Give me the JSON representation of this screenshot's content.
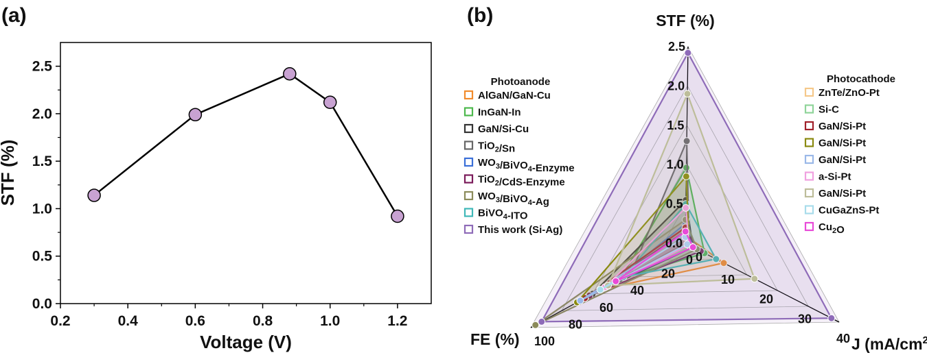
{
  "chart_data": [
    {
      "type": "line",
      "panel_label": "(a)",
      "xlabel": "Voltage (V)",
      "ylabel": "STF (%)",
      "xlim": [
        0.2,
        1.3
      ],
      "ylim": [
        0.0,
        2.75
      ],
      "x_ticks": [
        "0.2",
        "0.4",
        "0.6",
        "0.8",
        "1.0",
        "1.2"
      ],
      "y_ticks": [
        "0.0",
        "0.5",
        "1.0",
        "1.5",
        "2.0",
        "2.5"
      ],
      "x": [
        0.3,
        0.6,
        0.88,
        1.0,
        1.2
      ],
      "y": [
        1.14,
        1.99,
        2.42,
        2.12,
        0.92
      ],
      "marker_color": "#c8a2d2",
      "line_color": "#000000",
      "grid": false
    },
    {
      "type": "radar",
      "panel_label": "(b)",
      "axes": [
        {
          "key": "stf",
          "label": "STF (%)",
          "range": [
            0,
            2.5
          ],
          "ticks": [
            "0.0",
            "0.5",
            "1.0",
            "1.5",
            "2.0",
            "2.5"
          ],
          "tick_values": [
            0,
            0.5,
            1.0,
            1.5,
            2.0,
            2.5
          ]
        },
        {
          "key": "j",
          "label": "J (mA/cm",
          "label_sup": "2",
          "label_end": ")",
          "range": [
            0,
            40
          ],
          "ticks": [
            "0",
            "10",
            "20",
            "30",
            "40"
          ],
          "tick_values": [
            0,
            10,
            20,
            30,
            40
          ]
        },
        {
          "key": "fe",
          "label": "FE (%)",
          "range": [
            0,
            100
          ],
          "ticks": [
            "0",
            "20",
            "40",
            "60",
            "80",
            "100"
          ],
          "tick_values": [
            0,
            20,
            40,
            60,
            80,
            100
          ]
        }
      ],
      "legend_groups": [
        {
          "title": "Photoanode",
          "entries": [
            {
              "name": "AlGaN/GaN-Cu",
              "color": "#f28b2b"
            },
            {
              "name": "InGaN-In",
              "color": "#4cb84c"
            },
            {
              "name": "GaN/Si-Cu",
              "color": "#333333"
            },
            {
              "name": "TiO2/Sn",
              "color": "#666666"
            },
            {
              "name": "WO3/BiVO4-Enzyme",
              "color": "#3a6fd8"
            },
            {
              "name": "TiO2/CdS-Enzyme",
              "color": "#7a1a5a"
            },
            {
              "name": "WO3/BiVO4-Ag",
              "color": "#8b8b5a"
            },
            {
              "name": "BiVO4-ITO",
              "color": "#3fb8b8"
            },
            {
              "name": "This work (Si-Ag)",
              "color": "#8e6bb8"
            }
          ]
        },
        {
          "title": "Photocathode",
          "entries": [
            {
              "name": "ZnTe/ZnO-Pt",
              "color": "#f5c88a"
            },
            {
              "name": "Si-C",
              "color": "#8fd49a"
            },
            {
              "name": "GaN/Si-Pt",
              "color": "#a0202a"
            },
            {
              "name": "GaN/Si-Pt",
              "color": "#8a8a10"
            },
            {
              "name": "GaN/Si-Pt",
              "color": "#9ab8e8"
            },
            {
              "name": "a-Si-Pt",
              "color": "#f0a0e0"
            },
            {
              "name": "GaN/Si-Pt",
              "color": "#bdbd9a"
            },
            {
              "name": "CuGaZnS-Pt",
              "color": "#a8dceb"
            },
            {
              "name": "Cu2O",
              "color": "#e84ad8"
            }
          ]
        }
      ],
      "series": [
        {
          "name": "AlGaN/GaN-Cu",
          "color": "#f28b2b",
          "stf": 0.1,
          "j": 10,
          "fe": 55
        },
        {
          "name": "InGaN-In",
          "color": "#4cb84c",
          "stf": 0.96,
          "j": 5,
          "fe": 42
        },
        {
          "name": "GaN/Si-Cu",
          "color": "#333333",
          "stf": 0.55,
          "j": 2,
          "fe": 60
        },
        {
          "name": "TiO2/Sn",
          "color": "#666666",
          "stf": 1.3,
          "j": 1,
          "fe": 35
        },
        {
          "name": "WO3/BiVO4-Enzyme",
          "color": "#3a6fd8",
          "stf": 0.25,
          "j": 2,
          "fe": 48
        },
        {
          "name": "TiO2/CdS-Enzyme",
          "color": "#7a1a5a",
          "stf": 0.15,
          "j": 4,
          "fe": 62
        },
        {
          "name": "WO3/BiVO4-Ag",
          "color": "#8b8b5a",
          "stf": 0.3,
          "j": 3,
          "fe": 97
        },
        {
          "name": "BiVO4-ITO",
          "color": "#3fb8b8",
          "stf": 0.5,
          "j": 8,
          "fe": 40
        },
        {
          "name": "This work (Si-Ag)",
          "color": "#8e6bb8",
          "stf": 2.42,
          "j": 38,
          "fe": 93
        },
        {
          "name": "ZnTe/ZnO-Pt",
          "color": "#f5c88a",
          "stf": 0.1,
          "j": 1,
          "fe": 50
        },
        {
          "name": "Si-C",
          "color": "#8fd49a",
          "stf": 0.1,
          "j": 1.5,
          "fe": 45
        },
        {
          "name": "GaN/Si-Pt",
          "color": "#a0202a",
          "stf": 0.2,
          "j": 1,
          "fe": 65
        },
        {
          "name": "GaN/Si-Pt",
          "color": "#8a8a10",
          "stf": 0.85,
          "j": 1,
          "fe": 70
        },
        {
          "name": "GaN/Si-Pt",
          "color": "#9ab8e8",
          "stf": 0.12,
          "j": 1,
          "fe": 68
        },
        {
          "name": "a-Si-Pt",
          "color": "#f0a0e0",
          "stf": 0.45,
          "j": 1,
          "fe": 52
        },
        {
          "name": "GaN/Si-Pt",
          "color": "#bdbd9a",
          "stf": 1.9,
          "j": 18,
          "fe": 50
        },
        {
          "name": "CuGaZnS-Pt",
          "color": "#a8dceb",
          "stf": 0.08,
          "j": 0.5,
          "fe": 55
        },
        {
          "name": "Cu2O",
          "color": "#e84ad8",
          "stf": 0.15,
          "j": 2,
          "fe": 45
        }
      ],
      "fill_color": "#ede4f3"
    }
  ]
}
